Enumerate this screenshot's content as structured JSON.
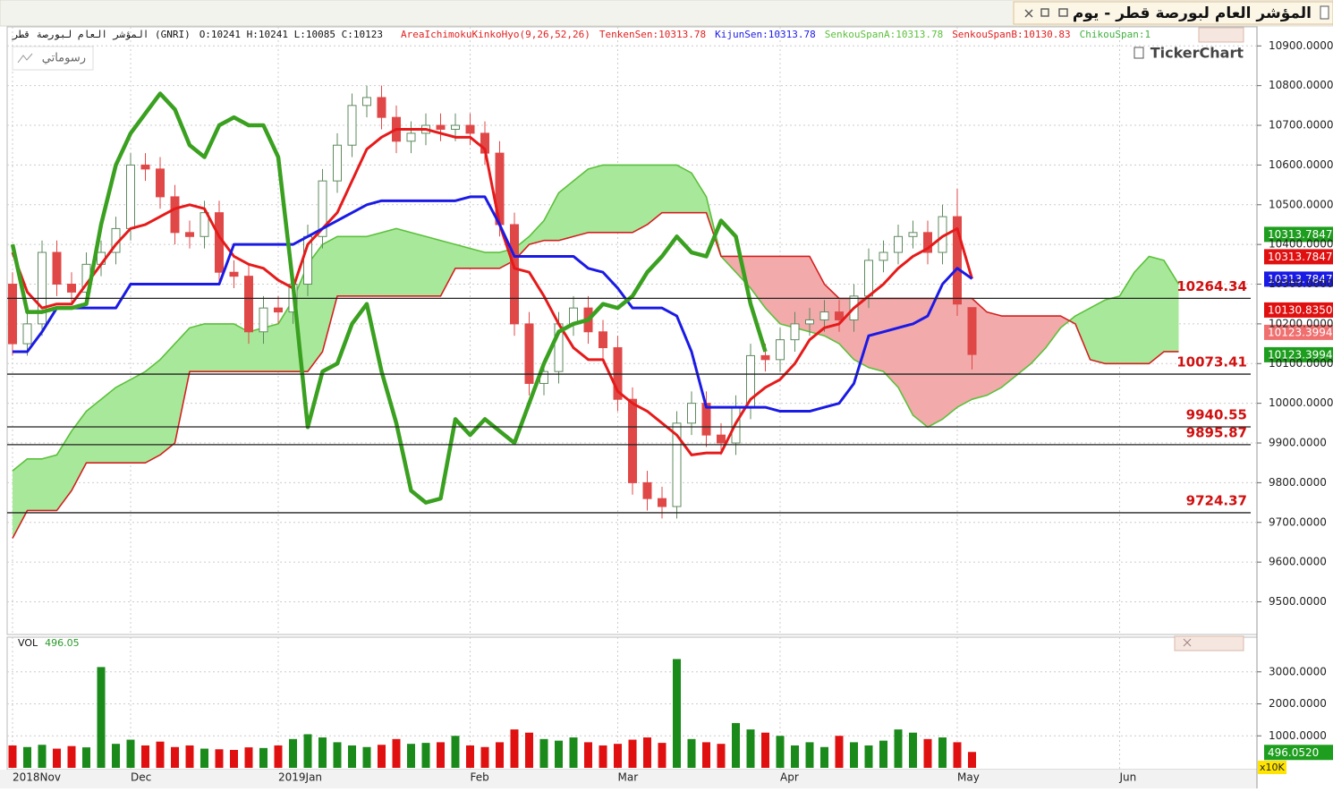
{
  "window": {
    "title": "المؤشر العام لبورصة قطر - يوم"
  },
  "info_bar": {
    "symbol": "المؤشر العام لبورصة قطر (GNRI)",
    "ohlc": "O:10241 H:10241 L:10085 C:10123",
    "indicators": [
      {
        "text": "AreaIchimokuKinkoHyo(9,26,52,26)",
        "color": "#e02020"
      },
      {
        "text": "TenkenSen:10313.78",
        "color": "#e02020"
      },
      {
        "text": "KijunSen:10313.78",
        "color": "#1a1ae6"
      },
      {
        "text": "SenkouSpanA:10313.78",
        "color": "#5cc03c"
      },
      {
        "text": "SenkouSpanB:10130.83",
        "color": "#e02020"
      },
      {
        "text": "ChikouSpan:1",
        "color": "#40b040"
      }
    ]
  },
  "drawings_button": "رسوماتي",
  "logo": "TickerChart",
  "chart_data": [
    {
      "type": "candlestick",
      "categories": [
        "2018Nov",
        null,
        null,
        null,
        null,
        null,
        null,
        null,
        "Dec",
        null,
        null,
        null,
        null,
        null,
        null,
        null,
        null,
        null,
        "2019Jan",
        null,
        null,
        null,
        null,
        null,
        null,
        null,
        null,
        null,
        null,
        null,
        null,
        "Feb",
        null,
        null,
        null,
        null,
        null,
        null,
        null,
        null,
        null,
        "Mar",
        null,
        null,
        null,
        null,
        null,
        null,
        null,
        null,
        null,
        null,
        "Apr",
        null,
        null,
        null,
        null,
        null,
        null,
        null,
        null,
        null,
        null,
        null,
        "May",
        null,
        null,
        null,
        null,
        null,
        null,
        null,
        null,
        null,
        null,
        "Jun",
        null,
        null,
        null,
        null
      ],
      "open": [
        10300,
        10150,
        10200,
        10380,
        10300,
        10280,
        10350,
        10380,
        10440,
        10600,
        10590,
        10520,
        10430,
        10420,
        10480,
        10330,
        10320,
        10180,
        10240,
        10230,
        10300,
        10420,
        10560,
        10650,
        10750,
        10770,
        10720,
        10660,
        10680,
        10700,
        10690,
        10700,
        10680,
        10630,
        10450,
        10200,
        10050,
        10080,
        10200,
        10240,
        10180,
        10140,
        10010,
        9800,
        9760,
        9740,
        9950,
        10000,
        9920,
        9900,
        9990,
        10120,
        10110,
        10160,
        10200,
        10210,
        10230,
        10210,
        10270,
        10360,
        10380,
        10420,
        10430,
        10380,
        10470,
        10241,
        null,
        null,
        null,
        null,
        null,
        null,
        null,
        null,
        null,
        null,
        null,
        null,
        null,
        null
      ],
      "high": [
        10330,
        10230,
        10410,
        10410,
        10330,
        10380,
        10410,
        10470,
        10630,
        10630,
        10620,
        10550,
        10460,
        10510,
        10510,
        10360,
        10350,
        10270,
        10270,
        10330,
        10450,
        10590,
        10680,
        10780,
        10800,
        10800,
        10750,
        10710,
        10730,
        10730,
        10730,
        10730,
        10710,
        10660,
        10480,
        10230,
        10110,
        10230,
        10270,
        10270,
        10210,
        10170,
        10040,
        9830,
        9790,
        9980,
        10030,
        10030,
        9950,
        10020,
        10150,
        10150,
        10190,
        10230,
        10240,
        10260,
        10260,
        10300,
        10390,
        10410,
        10450,
        10460,
        10460,
        10500,
        10540,
        10241,
        null,
        null,
        null,
        null,
        null,
        null,
        null,
        null,
        null,
        null,
        null,
        null,
        null,
        null
      ],
      "low": [
        10120,
        10120,
        10170,
        10270,
        10250,
        10250,
        10320,
        10350,
        10410,
        10560,
        10490,
        10400,
        10390,
        10390,
        10300,
        10290,
        10150,
        10150,
        10200,
        10200,
        10270,
        10390,
        10530,
        10620,
        10720,
        10690,
        10630,
        10630,
        10650,
        10660,
        10660,
        10650,
        10600,
        10420,
        10170,
        10020,
        10020,
        10050,
        10170,
        10150,
        10110,
        9980,
        9770,
        9730,
        9710,
        9710,
        9920,
        9890,
        9870,
        9870,
        9960,
        10080,
        10080,
        10130,
        10170,
        10180,
        10180,
        10180,
        10240,
        10330,
        10350,
        10390,
        10350,
        10350,
        10220,
        10085,
        null,
        null,
        null,
        null,
        null,
        null,
        null,
        null,
        null,
        null,
        null,
        null,
        null,
        null
      ],
      "close": [
        10150,
        10200,
        10380,
        10300,
        10280,
        10350,
        10380,
        10440,
        10600,
        10590,
        10520,
        10430,
        10420,
        10480,
        10330,
        10320,
        10180,
        10240,
        10230,
        10300,
        10420,
        10560,
        10650,
        10750,
        10770,
        10720,
        10660,
        10680,
        10700,
        10690,
        10700,
        10680,
        10630,
        10450,
        10200,
        10050,
        10080,
        10200,
        10240,
        10180,
        10140,
        10010,
        9800,
        9760,
        9740,
        9950,
        10000,
        9920,
        9900,
        9990,
        10120,
        10110,
        10160,
        10200,
        10210,
        10230,
        10210,
        10270,
        10360,
        10380,
        10420,
        10430,
        10380,
        10470,
        10250,
        10123,
        null,
        null,
        null,
        null,
        null,
        null,
        null,
        null,
        null,
        null,
        null,
        null,
        null,
        null
      ],
      "up_color": "#5e8a5e",
      "down_color": "#e04848",
      "cloud_colors": [
        "#a8e89a",
        "#f2aaaa"
      ],
      "series": [
        {
          "color": "#5cc03c",
          "values": [
            9830,
            9860,
            9860,
            9870,
            9930,
            9980,
            10010,
            10040,
            10060,
            10080,
            10110,
            10150,
            10190,
            10200,
            10200,
            10200,
            10180,
            10190,
            10200,
            10260,
            10350,
            10400,
            10420,
            10420,
            10420,
            10430,
            10440,
            10430,
            10420,
            10410,
            10400,
            10390,
            10380,
            10380,
            10390,
            10420,
            10460,
            10530,
            10560,
            10590,
            10600,
            10600,
            10600,
            10600,
            10600,
            10600,
            10580,
            10520,
            10370,
            10330,
            10290,
            10240,
            10200,
            10190,
            10180,
            10170,
            10150,
            10110,
            10090,
            10080,
            10040,
            9970,
            9940,
            9960,
            9990,
            10010,
            10020,
            10040,
            10070,
            10100,
            10140,
            10190,
            10220,
            10240,
            10260,
            10270,
            10330,
            10370,
            10360,
            10300
          ]
        },
        {
          "color": "#d42020",
          "values": [
            9660,
            9730,
            9730,
            9730,
            9780,
            9850,
            9850,
            9850,
            9850,
            9850,
            9870,
            9900,
            10080,
            10080,
            10080,
            10080,
            10080,
            10080,
            10080,
            10080,
            10080,
            10130,
            10270,
            10270,
            10270,
            10270,
            10270,
            10270,
            10270,
            10270,
            10340,
            10340,
            10340,
            10340,
            10360,
            10400,
            10410,
            10410,
            10420,
            10430,
            10430,
            10430,
            10430,
            10450,
            10480,
            10480,
            10480,
            10480,
            10370,
            10370,
            10370,
            10370,
            10370,
            10370,
            10370,
            10300,
            10264,
            10264,
            10264,
            10264,
            10264,
            10264,
            10264,
            10264,
            10264,
            10264,
            10230,
            10220,
            10220,
            10220,
            10220,
            10220,
            10200,
            10110,
            10100,
            10100,
            10100,
            10100,
            10130,
            10130
          ]
        },
        {
          "color": "#e61a1a",
          "values": [
            10380,
            10280,
            10240,
            10250,
            10250,
            10300,
            10350,
            10400,
            10440,
            10450,
            10470,
            10490,
            10500,
            10490,
            10420,
            10370,
            10350,
            10340,
            10310,
            10290,
            10400,
            10440,
            10480,
            10560,
            10640,
            10670,
            10690,
            10690,
            10690,
            10680,
            10670,
            10670,
            10640,
            10450,
            10340,
            10330,
            10270,
            10200,
            10140,
            10110,
            10110,
            10030,
            10000,
            9980,
            9950,
            9920,
            9870,
            9875,
            9875,
            9950,
            10010,
            10040,
            10060,
            10100,
            10160,
            10190,
            10200,
            10240,
            10270,
            10300,
            10340,
            10370,
            10390,
            10420,
            10440,
            10313.78,
            null,
            null,
            null,
            null,
            null,
            null,
            null,
            null,
            null,
            null,
            null,
            null,
            null,
            null
          ]
        },
        {
          "color": "#1a1ae6",
          "values": [
            10130,
            10130,
            10180,
            10240,
            10240,
            10240,
            10240,
            10240,
            10300,
            10300,
            10300,
            10300,
            10300,
            10300,
            10300,
            10400,
            10400,
            10400,
            10400,
            10400,
            10420,
            10440,
            10460,
            10480,
            10500,
            10510,
            10510,
            10510,
            10510,
            10510,
            10510,
            10520,
            10520,
            10450,
            10370,
            10370,
            10370,
            10370,
            10370,
            10340,
            10330,
            10290,
            10240,
            10240,
            10240,
            10220,
            10130,
            9990,
            9990,
            9990,
            9990,
            9990,
            9980,
            9980,
            9980,
            9990,
            10000,
            10050,
            10170,
            10180,
            10190,
            10200,
            10220,
            10300,
            10340,
            10313.78,
            null,
            null,
            null,
            null,
            null,
            null,
            null,
            null,
            null,
            null,
            null,
            null,
            null,
            null
          ]
        },
        {
          "color": "#3aa020",
          "values": [
            10400,
            10230,
            10230,
            10240,
            10240,
            10250,
            10450,
            10600,
            10680,
            10730,
            10780,
            10740,
            10650,
            10620,
            10700,
            10720,
            10700,
            10700,
            10620,
            10300,
            9940,
            10080,
            10100,
            10200,
            10250,
            10080,
            9950,
            9780,
            9750,
            9760,
            9960,
            9920,
            9960,
            9930,
            9900,
            10000,
            10100,
            10180,
            10200,
            10210,
            10250,
            10240,
            10270,
            10330,
            10370,
            10420,
            10380,
            10370,
            10460,
            10420,
            10250,
            10130,
            null,
            null,
            null,
            null,
            null,
            null,
            null,
            null,
            null,
            null,
            null,
            null,
            null,
            null,
            null,
            null,
            null,
            null,
            null,
            null,
            null,
            null,
            null,
            null,
            null,
            null,
            null,
            null
          ]
        }
      ],
      "levels": [
        10264.34,
        10073.41,
        9940.55,
        9895.87,
        9724.37
      ],
      "ylim": [
        9420,
        10948
      ],
      "yticks": [
        {
          "value": 10900,
          "label": "10900.0000"
        },
        {
          "value": 10800,
          "label": "10800.0000"
        },
        {
          "value": 10700,
          "label": "10700.0000"
        },
        {
          "value": 10600,
          "label": "10600.0000"
        },
        {
          "value": 10500,
          "label": "10500.0000"
        },
        {
          "value": 10400,
          "label": "10400.0000"
        },
        {
          "value": 10300,
          "label": "10300.0000"
        },
        {
          "value": 10200,
          "label": "10200.0000"
        },
        {
          "value": 10100,
          "label": "10100.0000"
        },
        {
          "value": 10000,
          "label": "10000.0000"
        },
        {
          "value": 9900,
          "label": "9900.0000"
        },
        {
          "value": 9800,
          "label": "9800.0000"
        },
        {
          "value": 9700,
          "label": "9700.0000"
        },
        {
          "value": 9600,
          "label": "9600.0000"
        },
        {
          "value": 9500,
          "label": "9500.0000"
        }
      ],
      "grid": true,
      "last_tags": [
        {
          "value": 10313.7847,
          "color": "#1e9e1e"
        },
        {
          "value": 10313.7847,
          "color": "#e01010"
        },
        {
          "value": 10313.7847,
          "color": "#1a1ae6"
        },
        {
          "value": 10130.835,
          "label": "10130.8350",
          "color": "#e01010"
        },
        {
          "value": 10123.3994,
          "color": "#f07070"
        },
        {
          "value": 10123.3994,
          "color": "#1e9e1e"
        }
      ]
    },
    {
      "type": "bar",
      "title": "VOL",
      "values": [
        700,
        650,
        720,
        600,
        680,
        640,
        3150,
        750,
        880,
        700,
        820,
        650,
        700,
        600,
        580,
        560,
        640,
        620,
        700,
        900,
        1050,
        950,
        800,
        700,
        650,
        720,
        900,
        750,
        780,
        800,
        1000,
        700,
        650,
        800,
        1200,
        1100,
        900,
        850,
        950,
        800,
        700,
        750,
        880,
        950,
        780,
        3400,
        900,
        800,
        750,
        1400,
        1200,
        1100,
        1000,
        700,
        800,
        650,
        1000,
        800,
        700,
        850,
        1200,
        1100,
        900,
        950,
        800,
        496.05,
        null,
        null,
        null,
        null,
        null,
        null,
        null,
        null,
        null,
        null,
        null,
        null,
        null,
        null
      ],
      "up_color": "#1a8a1a",
      "down_color": "#e01010",
      "ylim": [
        0,
        4000
      ],
      "yticks": [
        {
          "value": 3000,
          "label": "3000.0000"
        },
        {
          "value": 2000,
          "label": "2000.0000"
        },
        {
          "value": 1000,
          "label": "1000.0000"
        }
      ],
      "grid": true,
      "last_tag": {
        "value": 496.052,
        "label": "496.0520",
        "color": "#1e9e1e"
      },
      "unit": "x10K"
    }
  ]
}
